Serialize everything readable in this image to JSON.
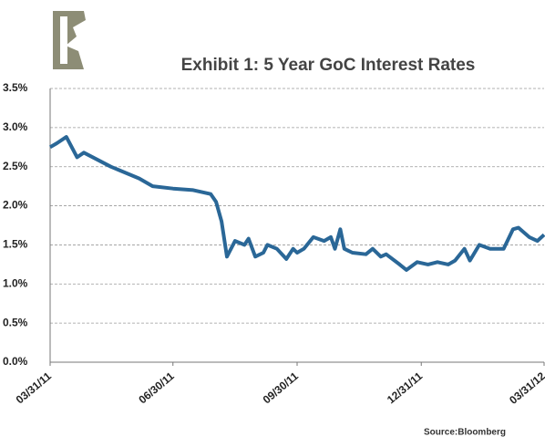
{
  "chart_data": {
    "type": "line",
    "title": "Exhibit 1:  5 Year GoC Interest Rates",
    "source": "Source:Bloomberg",
    "x": [
      "03/31/11",
      "04/05/11",
      "04/12/11",
      "04/20/11",
      "04/25/11",
      "05/15/11",
      "06/05/11",
      "06/15/11",
      "06/30/11",
      "07/15/11",
      "07/28/11",
      "08/01/11",
      "08/05/11",
      "08/09/11",
      "08/15/11",
      "08/22/11",
      "08/25/11",
      "08/30/11",
      "09/05/11",
      "09/08/11",
      "09/15/11",
      "09/22/11",
      "09/27/11",
      "09/30/11",
      "10/05/11",
      "10/12/11",
      "10/20/11",
      "10/25/11",
      "10/28/11",
      "11/01/11",
      "11/04/11",
      "11/10/11",
      "11/20/11",
      "11/25/11",
      "12/01/11",
      "12/05/11",
      "12/15/11",
      "12/20/11",
      "12/28/11",
      "01/05/12",
      "01/12/12",
      "01/20/12",
      "01/25/12",
      "02/01/12",
      "02/05/12",
      "02/12/12",
      "02/20/12",
      "03/01/12",
      "03/08/12",
      "03/12/12",
      "03/20/12",
      "03/26/12",
      "03/31/12"
    ],
    "series": [
      {
        "name": "5 Year GoC",
        "color": "#2a6797",
        "values": [
          2.75,
          2.8,
          2.88,
          2.62,
          2.68,
          2.5,
          2.35,
          2.25,
          2.22,
          2.2,
          2.15,
          2.05,
          1.8,
          1.35,
          1.55,
          1.5,
          1.58,
          1.35,
          1.4,
          1.5,
          1.45,
          1.32,
          1.45,
          1.4,
          1.45,
          1.6,
          1.55,
          1.6,
          1.45,
          1.7,
          1.45,
          1.4,
          1.38,
          1.45,
          1.35,
          1.38,
          1.25,
          1.18,
          1.28,
          1.25,
          1.28,
          1.25,
          1.3,
          1.45,
          1.3,
          1.5,
          1.45,
          1.45,
          1.7,
          1.72,
          1.6,
          1.55,
          1.63
        ]
      }
    ],
    "xticks": [
      "03/31/11",
      "06/30/11",
      "09/30/11",
      "12/31/11",
      "03/31/12"
    ],
    "ylim": [
      0,
      3.5
    ],
    "yticks": [
      {
        "value": 0,
        "label": "0.0%"
      },
      {
        "value": 0.5,
        "label": "0.5%"
      },
      {
        "value": 1,
        "label": "1.0%"
      },
      {
        "value": 1.5,
        "label": "1.5%"
      },
      {
        "value": 2,
        "label": "2.0%"
      },
      {
        "value": 2.5,
        "label": "2.5%"
      },
      {
        "value": 3,
        "label": "3.0%"
      },
      {
        "value": 3.5,
        "label": "3.5%"
      }
    ],
    "grid": true
  }
}
